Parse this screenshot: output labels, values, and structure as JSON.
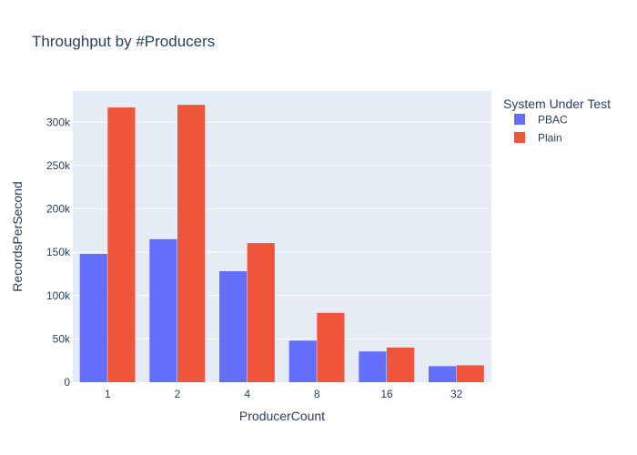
{
  "chart_data": {
    "type": "bar",
    "title": "Throughput by #Producers",
    "xlabel": "ProducerCount",
    "ylabel": "RecordsPerSecond",
    "categories": [
      "1",
      "2",
      "4",
      "8",
      "16",
      "32"
    ],
    "series": [
      {
        "name": "PBAC",
        "color": "#636efa",
        "values": [
          148000,
          165000,
          128000,
          48000,
          35500,
          18500
        ]
      },
      {
        "name": "Plain",
        "color": "#ef553b",
        "values": [
          317000,
          320000,
          160500,
          80000,
          40000,
          19500
        ]
      }
    ],
    "ylim": [
      0,
      336000
    ],
    "yticks": [
      0,
      50000,
      100000,
      150000,
      200000,
      250000,
      300000
    ],
    "ytick_labels": [
      "0",
      "50k",
      "100k",
      "150k",
      "200k",
      "250k",
      "300k"
    ],
    "grid": true,
    "legend": {
      "title": "System Under Test",
      "placement": "right"
    }
  }
}
